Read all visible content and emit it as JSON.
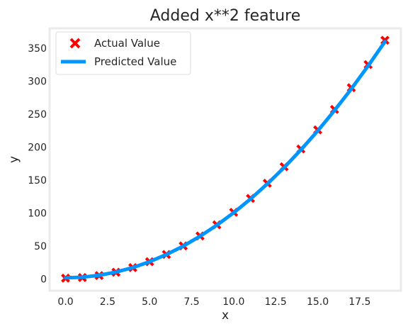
{
  "chart_data": {
    "type": "scatter+line",
    "title": "Added x**2 feature",
    "xlabel": "x",
    "ylabel": "y",
    "xlim": [
      -0.95,
      19.95
    ],
    "ylim": [
      -18,
      380
    ],
    "xticks": [
      "0.0",
      "2.5",
      "5.0",
      "7.5",
      "10.0",
      "12.5",
      "15.0",
      "17.5"
    ],
    "yticks": [
      "0",
      "50",
      "100",
      "150",
      "200",
      "250",
      "300",
      "350"
    ],
    "legend_placement": "upper-left",
    "grid": false,
    "series": [
      {
        "name": "Actual Value",
        "kind": "scatter",
        "marker": "X",
        "color": "#ff0000",
        "x": [
          0,
          1,
          2,
          3,
          4,
          5,
          6,
          7,
          8,
          9,
          10,
          11,
          12,
          13,
          14,
          15,
          16,
          17,
          18,
          19
        ],
        "y": [
          1,
          2,
          5,
          10,
          17,
          26,
          37,
          50,
          65,
          82,
          101,
          122,
          145,
          170,
          197,
          226,
          257,
          290,
          325,
          362
        ]
      },
      {
        "name": "Predicted Value",
        "kind": "line",
        "color": "#0096ff",
        "x": [
          0,
          1,
          2,
          3,
          4,
          5,
          6,
          7,
          8,
          9,
          10,
          11,
          12,
          13,
          14,
          15,
          16,
          17,
          18,
          19
        ],
        "y": [
          1.6,
          2.5,
          5.4,
          10.3,
          17.1,
          26.0,
          36.9,
          49.7,
          64.6,
          81.4,
          100.3,
          121.1,
          144.0,
          168.8,
          195.7,
          224.5,
          255.4,
          288.2,
          323.1,
          359.9
        ]
      }
    ]
  }
}
